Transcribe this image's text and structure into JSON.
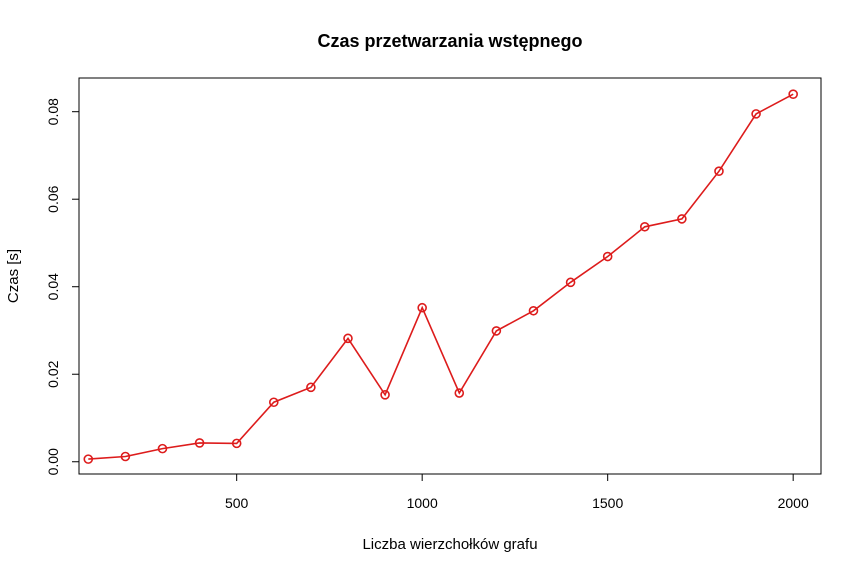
{
  "chart_data": {
    "type": "line",
    "title": "Czas przetwarzania wstępnego",
    "xlabel": "Liczba wierzchołków grafu",
    "ylabel": "Czas [s]",
    "xlim": [
      75,
      2075
    ],
    "ylim": [
      -0.0028,
      0.0877
    ],
    "xticks": [
      500,
      1000,
      1500,
      2000
    ],
    "yticks": [
      0.0,
      0.02,
      0.04,
      0.06,
      0.08
    ],
    "ytick_labels": [
      "0.00",
      "0.02",
      "0.04",
      "0.06",
      "0.08"
    ],
    "grid": false,
    "legend": "none",
    "marker": "open-circle",
    "series": [
      {
        "color": "#dd1c1c",
        "x": [
          100,
          200,
          300,
          400,
          500,
          600,
          700,
          800,
          900,
          1000,
          1100,
          1200,
          1300,
          1400,
          1500,
          1600,
          1700,
          1800,
          1900,
          2000
        ],
        "y": [
          0.0006,
          0.0012,
          0.003,
          0.0043,
          0.0042,
          0.0136,
          0.017,
          0.0282,
          0.0153,
          0.0352,
          0.0157,
          0.0299,
          0.0345,
          0.041,
          0.0469,
          0.0537,
          0.0555,
          0.0664,
          0.0795,
          0.084
        ]
      }
    ]
  }
}
